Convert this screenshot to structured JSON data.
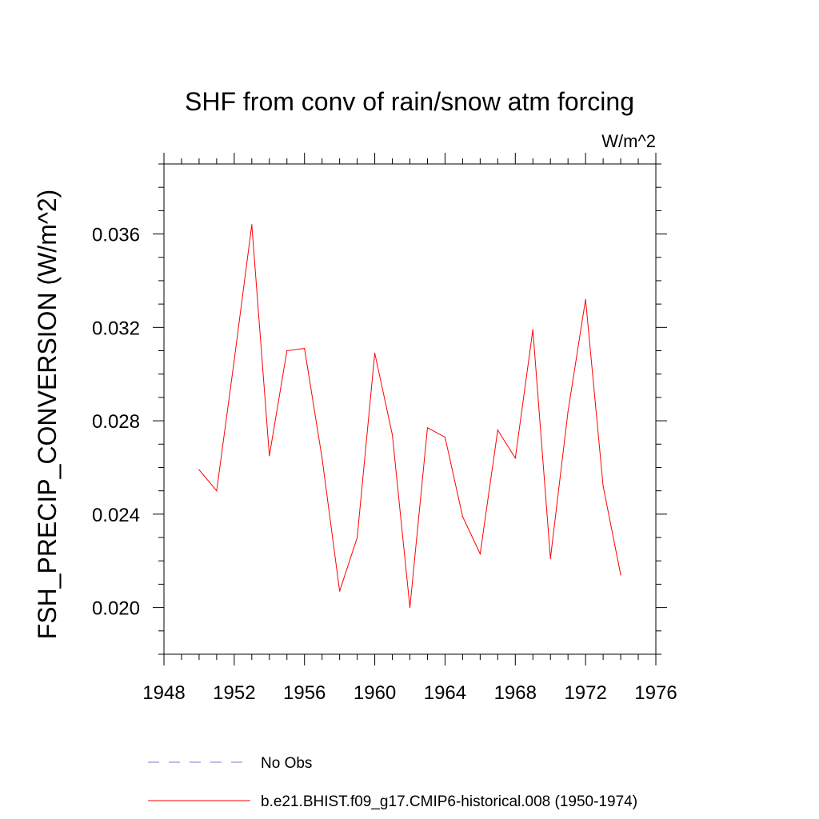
{
  "chart_data": {
    "type": "line",
    "title": "SHF from conv of rain/snow atm forcing",
    "units_label": "W/m^2",
    "ylabel": "FSH_PRECIP_CONVERSION  (W/m^2)",
    "xlabel": "",
    "xlim": [
      1948,
      1976
    ],
    "ylim": [
      0.018,
      0.039
    ],
    "x_ticks": [
      "1948",
      "1952",
      "1956",
      "1960",
      "1964",
      "1968",
      "1972",
      "1976"
    ],
    "y_ticks": [
      "0.020",
      "0.024",
      "0.028",
      "0.032",
      "0.036"
    ],
    "series": [
      {
        "name": "b.e21.BHIST.f09_g17.CMIP6-historical.008 (1950-1974)",
        "color": "#ff0000",
        "x": [
          1950,
          1951,
          1952,
          1953,
          1954,
          1955,
          1956,
          1957,
          1958,
          1959,
          1960,
          1961,
          1962,
          1963,
          1964,
          1965,
          1966,
          1967,
          1968,
          1969,
          1970,
          1971,
          1972,
          1973,
          1974
        ],
        "y": [
          0.0259,
          0.025,
          0.0306,
          0.0364,
          0.0265,
          0.031,
          0.0311,
          0.0264,
          0.0207,
          0.023,
          0.0309,
          0.0274,
          0.02,
          0.0277,
          0.0273,
          0.0239,
          0.0223,
          0.0276,
          0.0264,
          0.0319,
          0.0221,
          0.0284,
          0.0332,
          0.0252,
          0.0214
        ]
      }
    ],
    "legend": [
      {
        "label": "No Obs",
        "style": "dashed",
        "color": "#7a7ac8"
      },
      {
        "label": "b.e21.BHIST.f09_g17.CMIP6-historical.008 (1950-1974)",
        "style": "solid",
        "color": "#ff0000"
      }
    ],
    "grid": false,
    "legend_placement": "bottom"
  }
}
